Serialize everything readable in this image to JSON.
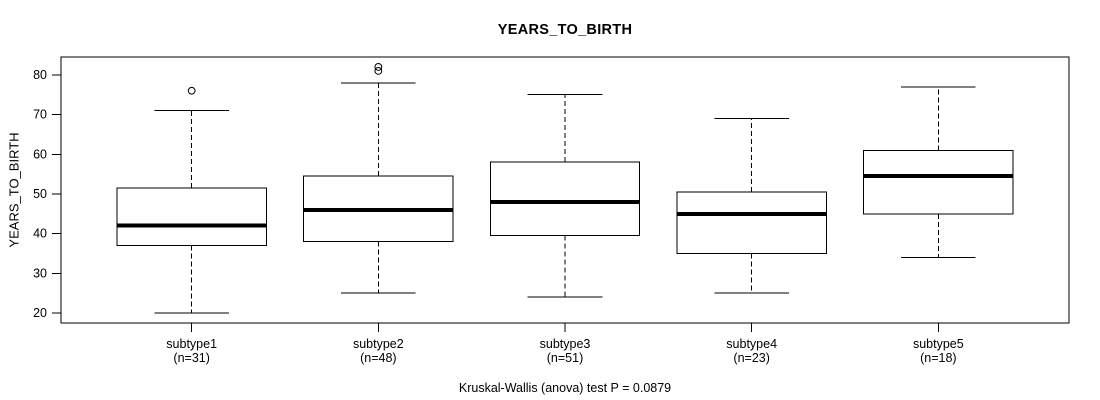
{
  "chart_data": {
    "type": "boxplot",
    "title": "YEARS_TO_BIRTH",
    "ylabel": "YEARS_TO_BIRTH",
    "xlabel": "",
    "caption": "Kruskal-Wallis (anova) test P = 0.0879",
    "y_ticks": [
      20,
      30,
      40,
      50,
      60,
      70,
      80
    ],
    "ylim": [
      17.5,
      84.5
    ],
    "grid": false,
    "line_color": "#000000",
    "box_fill": "#ffffff",
    "groups": [
      {
        "label": "subtype1",
        "sublabel": "(n=31)",
        "n": 31,
        "whisker_low": 20,
        "q1": 37,
        "median": 42,
        "q3": 51.5,
        "whisker_high": 71,
        "outliers": [
          76
        ]
      },
      {
        "label": "subtype2",
        "sublabel": "(n=48)",
        "n": 48,
        "whisker_low": 25,
        "q1": 38,
        "median": 46,
        "q3": 54.5,
        "whisker_high": 78,
        "outliers": [
          81,
          82
        ]
      },
      {
        "label": "subtype3",
        "sublabel": "(n=51)",
        "n": 51,
        "whisker_low": 24,
        "q1": 39.5,
        "median": 48,
        "q3": 58,
        "whisker_high": 75,
        "outliers": []
      },
      {
        "label": "subtype4",
        "sublabel": "(n=23)",
        "n": 23,
        "whisker_low": 25,
        "q1": 35,
        "median": 45,
        "q3": 50.5,
        "whisker_high": 69,
        "outliers": []
      },
      {
        "label": "subtype5",
        "sublabel": "(n=18)",
        "n": 18,
        "whisker_low": 34,
        "q1": 45,
        "median": 54.5,
        "q3": 61,
        "whisker_high": 77,
        "outliers": []
      }
    ]
  }
}
